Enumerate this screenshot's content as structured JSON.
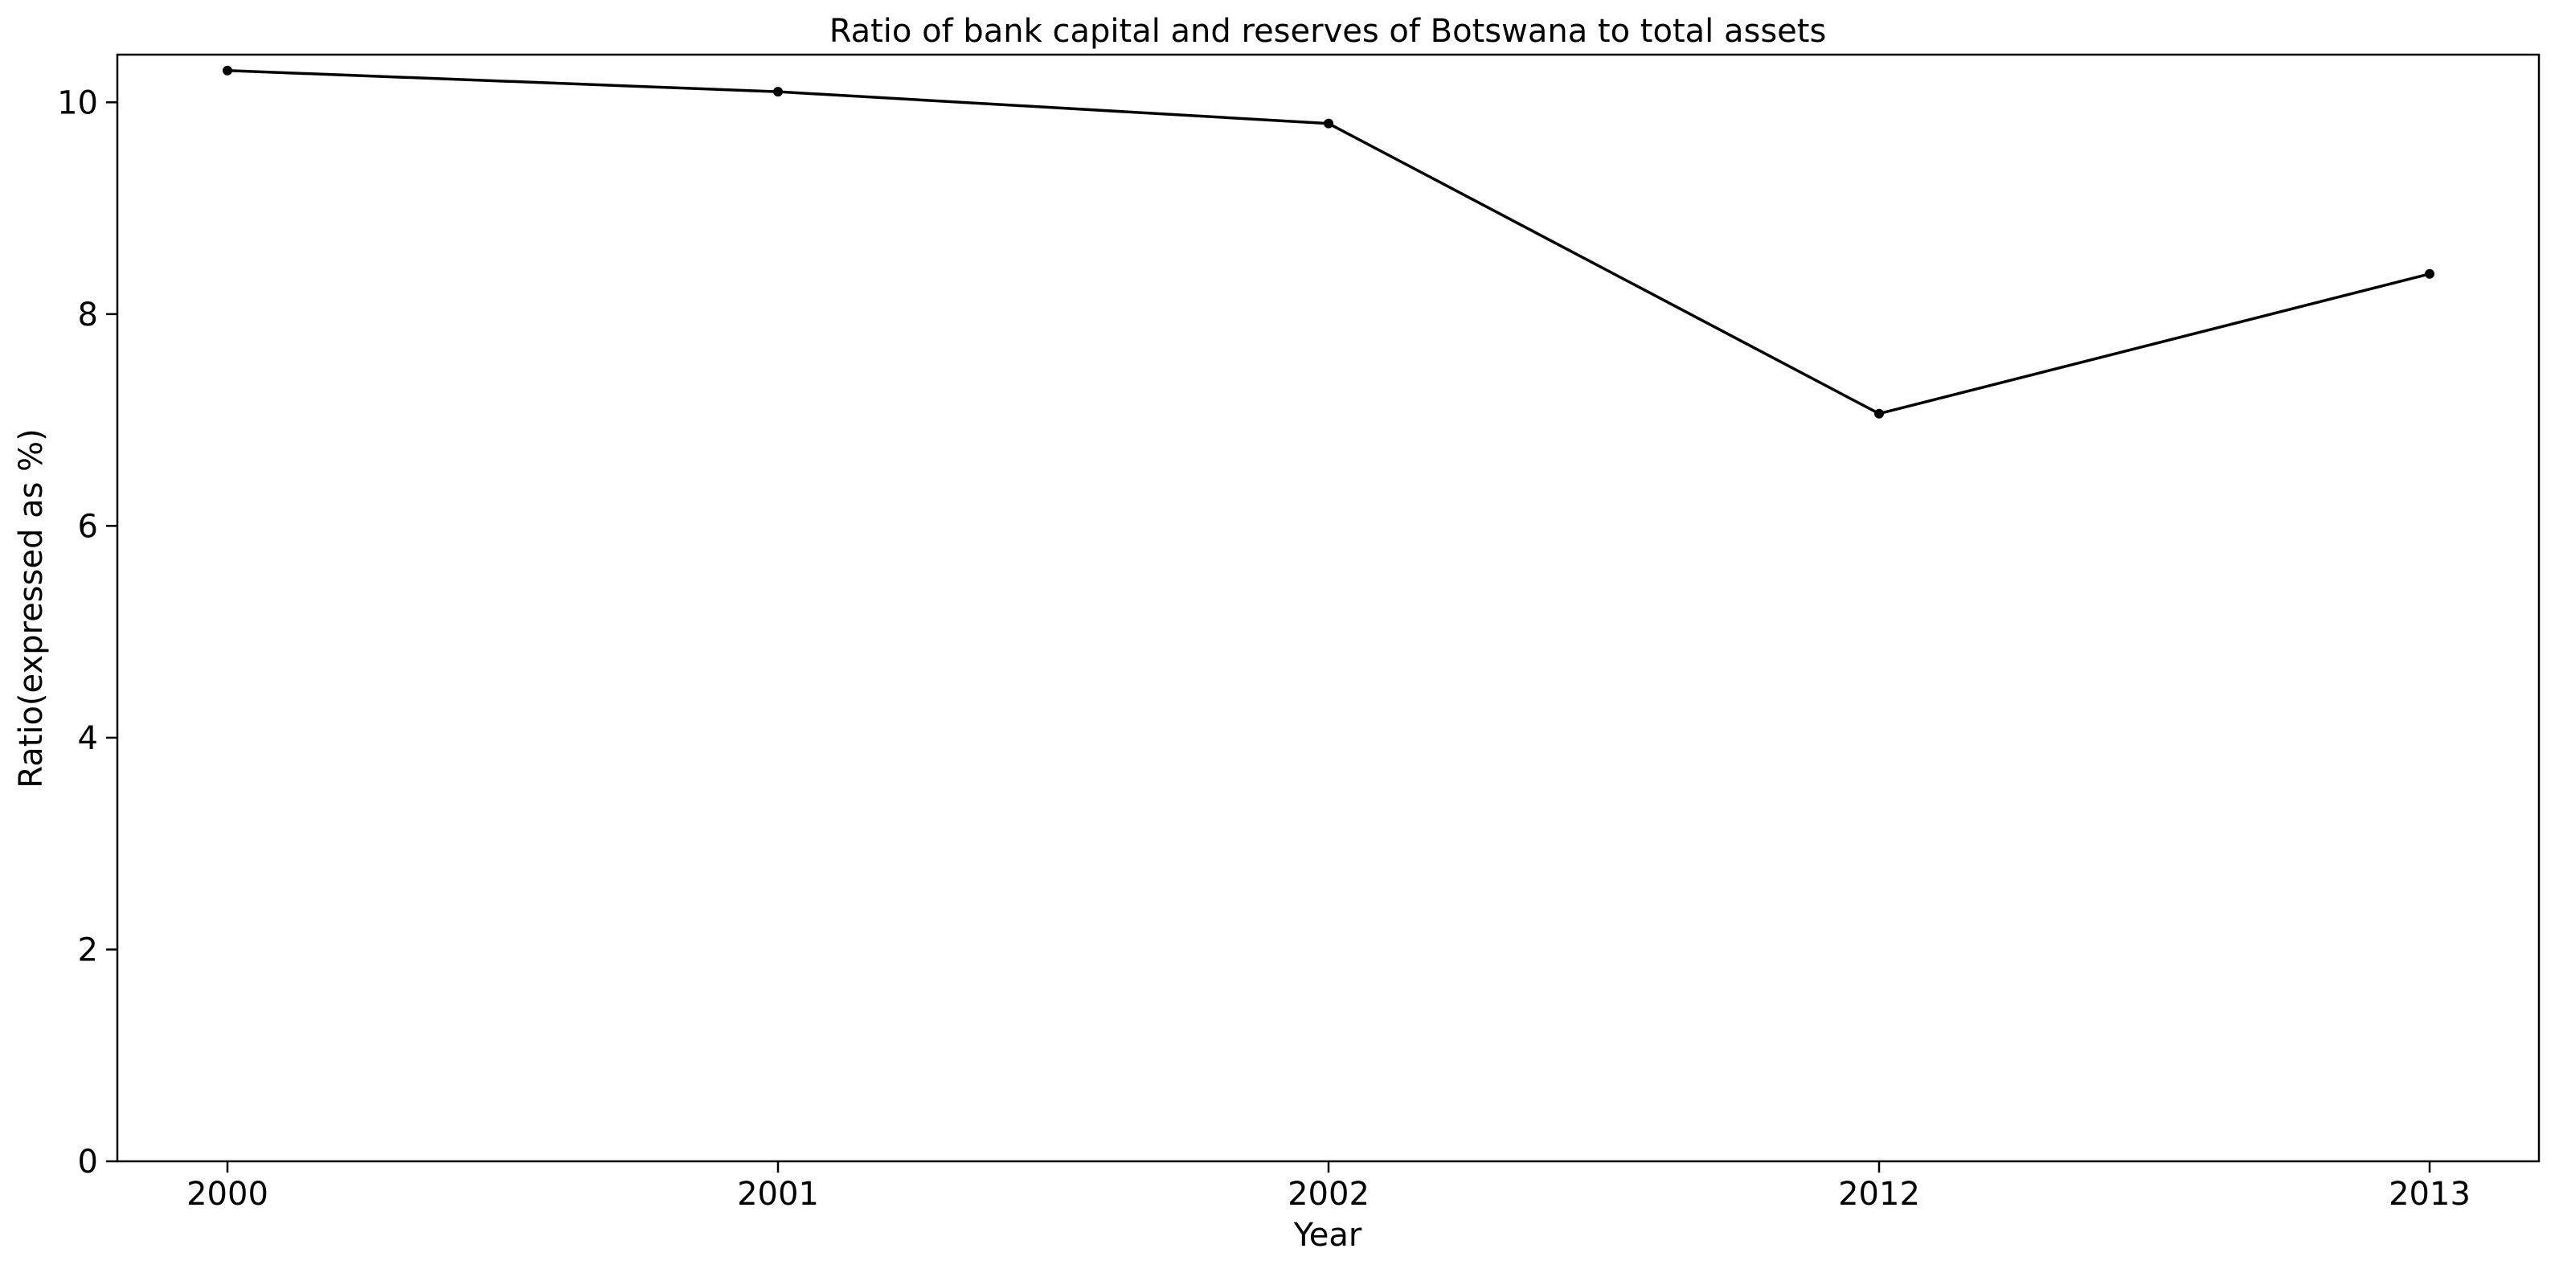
{
  "chart_data": {
    "type": "line",
    "title": "Ratio of bank capital and reserves of Botswana to total assets",
    "xlabel": "Year",
    "ylabel": "Ratio(expressed as %)",
    "categories": [
      "2000",
      "2001",
      "2002",
      "2012",
      "2013"
    ],
    "series": [
      {
        "values": [
          10.3,
          10.1,
          9.8,
          7.06,
          8.38
        ],
        "color": "#000000",
        "marker": "dot"
      }
    ],
    "ylim": [
      0,
      10.45
    ],
    "yticks": [
      "0",
      "2",
      "4",
      "6",
      "8",
      "10"
    ],
    "grid": false,
    "legend": "none"
  }
}
